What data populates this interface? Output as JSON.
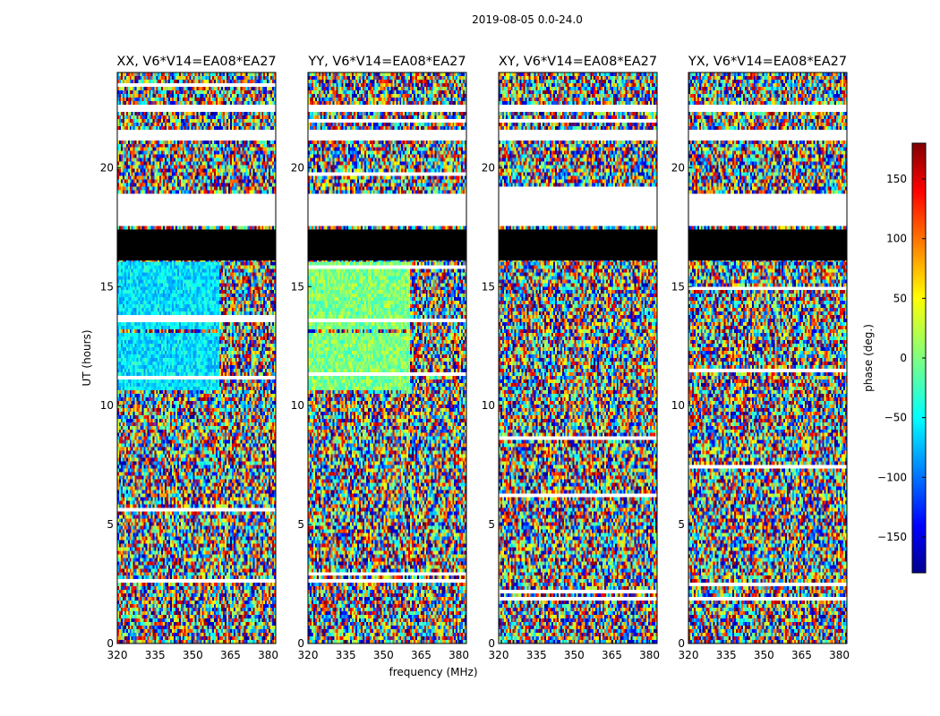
{
  "figure": {
    "suptitle": "2019-08-05 0.0-24.0",
    "shared_xlabel": "frequency (MHz)",
    "shared_ylabel": "UT (hours)"
  },
  "chart_data": [
    {
      "type": "heatmap",
      "title": "XX, V6*V14=EA08*EA27",
      "xlabel": "frequency (MHz)",
      "ylabel": "UT (hours)",
      "xlim": [
        320,
        383
      ],
      "ylim": [
        0,
        24
      ],
      "xticks": [
        320,
        335,
        350,
        365,
        380
      ],
      "yticks": [
        0,
        5,
        10,
        15,
        20
      ],
      "value": "phase (deg.)",
      "vrange": [
        -180,
        180
      ],
      "colormap": "jet",
      "flagged_bands_hours": [
        [
          16.1,
          17.4
        ]
      ],
      "missing_bands_hours": [
        [
          17.6,
          18.9
        ],
        [
          21.2,
          21.6
        ],
        [
          22.3,
          22.7
        ]
      ],
      "structure": "strong coherent phase (blue-cyan) bands at 10.6-13 h and 13.2-16 h below ~362 MHz, noisy elsewhere"
    },
    {
      "type": "heatmap",
      "title": "YY, V6*V14=EA08*EA27",
      "xlabel": "frequency (MHz)",
      "ylabel": "UT (hours)",
      "xlim": [
        320,
        383
      ],
      "ylim": [
        0,
        24
      ],
      "xticks": [
        320,
        335,
        350,
        365,
        380
      ],
      "yticks": [
        0,
        5,
        10,
        15,
        20
      ],
      "value": "phase (deg.)",
      "vrange": [
        -180,
        180
      ],
      "colormap": "jet",
      "flagged_bands_hours": [
        [
          16.1,
          17.4
        ]
      ],
      "missing_bands_hours": [
        [
          17.6,
          18.9
        ],
        [
          21.2,
          21.6
        ],
        [
          22.3,
          22.7
        ]
      ],
      "structure": "coherent phase (green-yellow) bands at 10.6-13 h and 13.2-16 h below ~362 MHz, noisy elsewhere"
    },
    {
      "type": "heatmap",
      "title": "XY, V6*V14=EA08*EA27",
      "xlabel": "frequency (MHz)",
      "ylabel": "UT (hours)",
      "xlim": [
        320,
        383
      ],
      "ylim": [
        0,
        24
      ],
      "xticks": [
        320,
        335,
        350,
        365,
        380
      ],
      "yticks": [
        0,
        5,
        10,
        15,
        20
      ],
      "value": "phase (deg.)",
      "vrange": [
        -180,
        180
      ],
      "colormap": "jet",
      "flagged_bands_hours": [
        [
          16.1,
          17.4
        ]
      ],
      "missing_bands_hours": [
        [
          17.6,
          18.9
        ],
        [
          21.2,
          21.6
        ],
        [
          22.3,
          22.7
        ]
      ],
      "structure": "mostly noisy phase; weak coherence 10.6-13 h"
    },
    {
      "type": "heatmap",
      "title": "YX, V6*V14=EA08*EA27",
      "xlabel": "frequency (MHz)",
      "ylabel": "UT (hours)",
      "xlim": [
        320,
        383
      ],
      "ylim": [
        0,
        24
      ],
      "xticks": [
        320,
        335,
        350,
        365,
        380
      ],
      "yticks": [
        0,
        5,
        10,
        15,
        20
      ],
      "value": "phase (deg.)",
      "vrange": [
        -180,
        180
      ],
      "colormap": "jet",
      "flagged_bands_hours": [
        [
          16.1,
          17.4
        ]
      ],
      "missing_bands_hours": [
        [
          17.6,
          18.9
        ],
        [
          21.2,
          21.6
        ],
        [
          22.3,
          22.7
        ]
      ],
      "structure": "mostly noisy phase; reddish coherence 10.6-13 h"
    }
  ],
  "colorbar": {
    "label": "phase (deg.)",
    "range": [
      -180,
      180
    ],
    "ticks": [
      150,
      100,
      50,
      0,
      -50,
      -100,
      -150
    ],
    "colormap": "jet"
  }
}
